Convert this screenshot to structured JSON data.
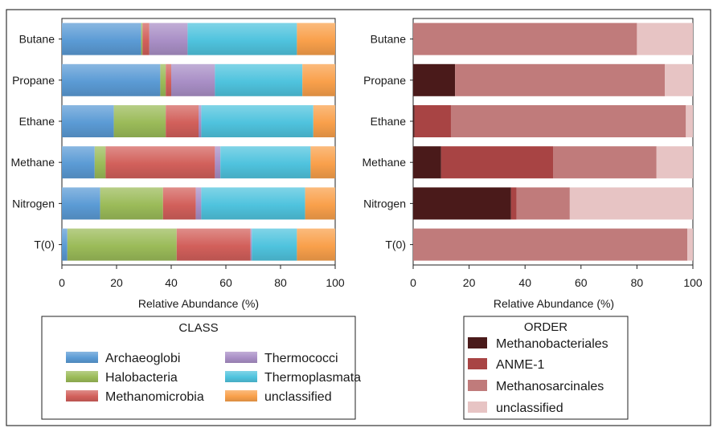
{
  "chart_data": [
    {
      "type": "bar",
      "orientation": "horizontal",
      "stacked": true,
      "legend_title": "CLASS",
      "xlabel": "Relative Abundance (%)",
      "ylabel": "",
      "xlim": [
        0,
        100
      ],
      "xticks": [
        "0",
        "20",
        "40",
        "60",
        "80",
        "100"
      ],
      "grid": false,
      "categories": [
        "Butane",
        "Propane",
        "Ethane",
        "Methane",
        "Nitrogen",
        "T(0)"
      ],
      "series": [
        {
          "name": "Archaeoglobi",
          "color": "#5b9bd5",
          "values": [
            29,
            36,
            19,
            12,
            14,
            2
          ]
        },
        {
          "name": "Halobacteria",
          "color": "#9bbb59",
          "values": [
            0.5,
            2,
            19,
            4,
            23,
            40
          ]
        },
        {
          "name": "Methanomicrobia",
          "color": "#d2605b",
          "values": [
            2.5,
            2,
            12,
            40,
            12,
            27
          ]
        },
        {
          "name": "Thermococci",
          "color": "#a98fc6",
          "values": [
            14,
            16,
            1,
            2,
            2,
            0.5
          ]
        },
        {
          "name": "Thermoplasmata",
          "color": "#4fc3de",
          "values": [
            40,
            32,
            41,
            33,
            38,
            16.5
          ]
        },
        {
          "name": "unclassified",
          "color": "#f9a04b",
          "values": [
            14,
            12,
            8,
            9,
            11,
            14
          ]
        }
      ]
    },
    {
      "type": "bar",
      "orientation": "horizontal",
      "stacked": true,
      "legend_title": "ORDER",
      "xlabel": "Relative Abundance (%)",
      "ylabel": "",
      "xlim": [
        0,
        100
      ],
      "xticks": [
        "0",
        "20",
        "40",
        "60",
        "80",
        "100"
      ],
      "grid": false,
      "categories": [
        "Butane",
        "Propane",
        "Ethane",
        "Methane",
        "Nitrogen",
        "T(0)"
      ],
      "series": [
        {
          "name": "Methanobacteriales",
          "color": "#4a1a1a",
          "values": [
            0,
            15,
            0.5,
            10,
            35,
            0
          ]
        },
        {
          "name": "ANME-1",
          "color": "#a84444",
          "values": [
            0,
            0,
            13,
            40,
            2,
            0
          ]
        },
        {
          "name": "Methanosarcinales",
          "color": "#c07b7b",
          "values": [
            80,
            75,
            84,
            37,
            19,
            98
          ]
        },
        {
          "name": "unclassified",
          "color": "#e7c4c4",
          "values": [
            20,
            10,
            2.5,
            13,
            44,
            2
          ]
        }
      ]
    }
  ]
}
